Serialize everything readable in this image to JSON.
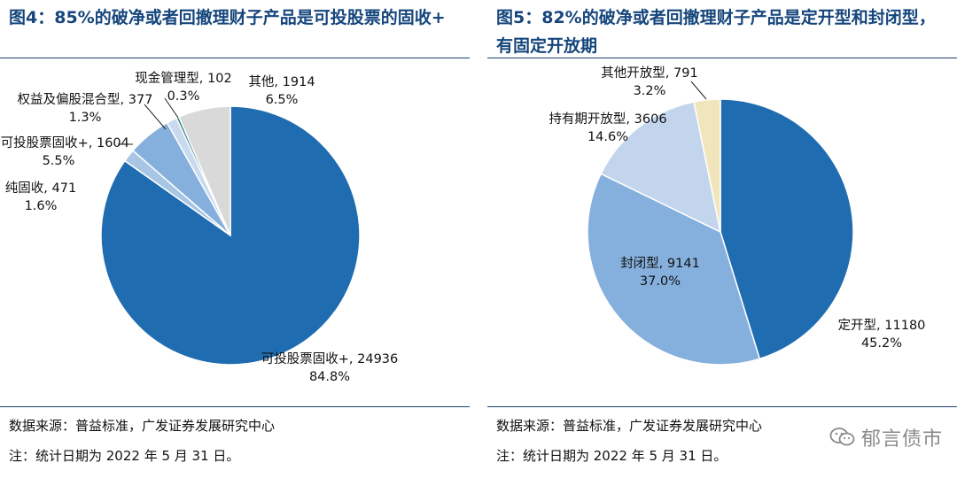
{
  "colors": {
    "title": "#16467c",
    "rule": "#1a3f6e",
    "leader": "#222222"
  },
  "left": {
    "title": "图4：85%的破净或者回撤理财子产品是可投股票的固收+",
    "source": "数据来源：普益标准，广发证券发展研究中心",
    "note": "注：统计日期为 2022 年 5 月 31 日。"
  },
  "right": {
    "title": "图5：82%的破净或者回撤理财子产品是定开型和封闭型，有固定开放期",
    "source": "数据来源：普益标准，广发证券发展研究中心",
    "note": "注：统计日期为 2022 年 5 月 31 日。"
  },
  "watermark": {
    "text": "郁言债市",
    "icon": "wechat-icon"
  },
  "chart_data": [
    {
      "type": "pie",
      "title": "图4：85%的破净或者回撤理财子产品是可投股票的固收+",
      "start": "12 o'clock",
      "direction": "clockwise",
      "slices": [
        {
          "label": "可投股票固收+",
          "value": 24936,
          "pct": "84.8%",
          "color": "#1f6cb0"
        },
        {
          "label": "纯固收",
          "value": 471,
          "pct": "1.6%",
          "color": "#a7c5e4"
        },
        {
          "label": "不可投股票固收+",
          "value": 1604,
          "pct": "5.5%",
          "color": "#85b0dd"
        },
        {
          "label": "权益及偏股混合型",
          "value": 377,
          "pct": "1.3%",
          "color": "#c9daee"
        },
        {
          "label": "现金管理型",
          "value": 102,
          "pct": "0.3%",
          "color": "#2e7d8c"
        },
        {
          "label": "其他",
          "value": 1914,
          "pct": "6.5%",
          "color": "#d9d9d9"
        }
      ]
    },
    {
      "type": "pie",
      "title": "图5：82%的破净或者回撤理财子产品是定开型和封闭型，有固定开放期",
      "start": "12 o'clock",
      "direction": "clockwise",
      "slices": [
        {
          "label": "定开型",
          "value": 11180,
          "pct": "45.2%",
          "color": "#1f6cb0"
        },
        {
          "label": "封闭型",
          "value": 9141,
          "pct": "37.0%",
          "color": "#85b0dd"
        },
        {
          "label": "持有期开放型",
          "value": 3606,
          "pct": "14.6%",
          "color": "#c3d5ec"
        },
        {
          "label": "其他开放型",
          "value": 791,
          "pct": "3.2%",
          "color": "#f1e6bb"
        }
      ]
    }
  ]
}
